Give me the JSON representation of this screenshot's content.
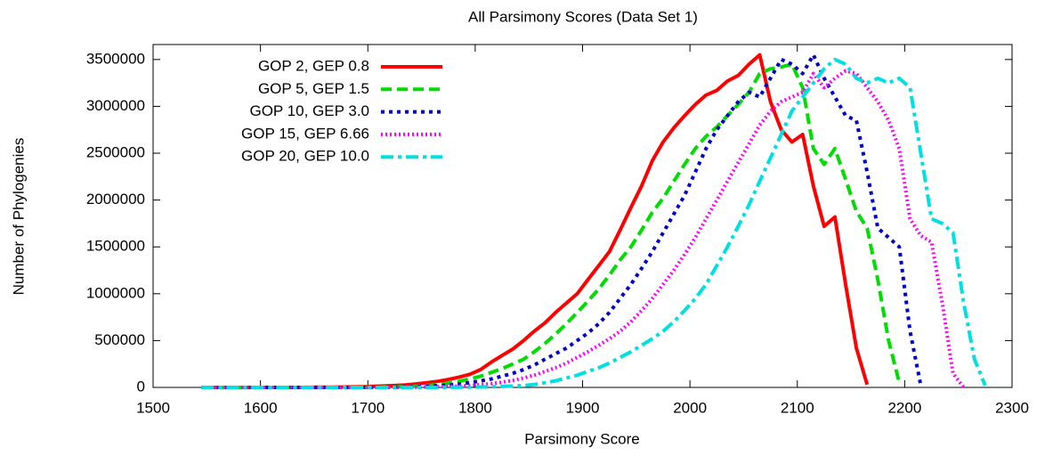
{
  "chart_data": {
    "type": "line",
    "title": "All Parsimony Scores (Data Set 1)",
    "x_label": "Parsimony Score",
    "y_label": "Number of Phylogenies",
    "xlim": [
      1500,
      2300
    ],
    "xticks": [
      1500,
      1600,
      1700,
      1800,
      1900,
      2000,
      2100,
      2200,
      2300
    ],
    "ylim": [
      0,
      3660000
    ],
    "yticks": [
      0,
      500000,
      1000000,
      1500000,
      2000000,
      2500000,
      3000000,
      3500000
    ],
    "legend": "upper left",
    "x": [
      1545,
      1555,
      1565,
      1575,
      1585,
      1595,
      1605,
      1615,
      1625,
      1635,
      1645,
      1655,
      1665,
      1675,
      1685,
      1695,
      1705,
      1715,
      1725,
      1735,
      1745,
      1755,
      1765,
      1775,
      1785,
      1795,
      1805,
      1815,
      1825,
      1835,
      1845,
      1855,
      1865,
      1875,
      1885,
      1895,
      1905,
      1915,
      1925,
      1935,
      1945,
      1955,
      1965,
      1975,
      1985,
      1995,
      2005,
      2015,
      2025,
      2035,
      2045,
      2055,
      2065,
      2075,
      2085,
      2095,
      2105,
      2115,
      2125,
      2135,
      2145,
      2155,
      2165,
      2175,
      2185,
      2195,
      2205,
      2215,
      2225,
      2235,
      2245,
      2255,
      2265,
      2275
    ],
    "series": [
      {
        "name": "GOP 2, GEP 0.8",
        "color": "#ff0000",
        "dash": "solid",
        "values": [
          0,
          0,
          0,
          0,
          0,
          0,
          0,
          0,
          0,
          0,
          1000,
          2000,
          3000,
          4000,
          6000,
          8000,
          11000,
          15000,
          20000,
          27000,
          37000,
          50000,
          65000,
          85000,
          110000,
          140000,
          190000,
          270000,
          340000,
          410000,
          500000,
          600000,
          690000,
          800000,
          900000,
          1000000,
          1150000,
          1300000,
          1450000,
          1680000,
          1920000,
          2150000,
          2420000,
          2620000,
          2770000,
          2900000,
          3020000,
          3120000,
          3170000,
          3270000,
          3330000,
          3450000,
          3550000,
          3050000,
          2750000,
          2620000,
          2700000,
          2150000,
          1720000,
          1820000,
          1100000,
          420000,
          30000,
          null,
          null,
          null,
          null,
          null,
          null,
          null,
          null,
          null,
          null,
          null
        ]
      },
      {
        "name": "GOP 5, GEP 1.5",
        "color": "#00dd00",
        "dash": "dash",
        "values": [
          0,
          0,
          0,
          0,
          0,
          0,
          0,
          0,
          0,
          0,
          0,
          0,
          0,
          0,
          1000,
          2000,
          3000,
          4000,
          6000,
          9000,
          13000,
          20000,
          30000,
          45000,
          65000,
          90000,
          120000,
          160000,
          200000,
          250000,
          300000,
          380000,
          470000,
          570000,
          680000,
          800000,
          920000,
          1050000,
          1200000,
          1360000,
          1500000,
          1680000,
          1870000,
          2020000,
          2200000,
          2380000,
          2550000,
          2680000,
          2780000,
          2900000,
          3020000,
          3150000,
          3350000,
          3400000,
          3420000,
          3450000,
          3200000,
          2550000,
          2380000,
          2550000,
          2220000,
          1880000,
          1700000,
          1150000,
          500000,
          50000,
          null,
          null,
          null,
          null,
          null,
          null,
          null,
          null
        ]
      },
      {
        "name": "GOP 10, GEP 3.0",
        "color": "#0000cc",
        "dash": "dot",
        "values": [
          0,
          0,
          0,
          0,
          0,
          0,
          0,
          0,
          0,
          0,
          0,
          0,
          0,
          0,
          0,
          0,
          1000,
          2000,
          3000,
          5000,
          8000,
          12000,
          18000,
          25000,
          35000,
          50000,
          70000,
          90000,
          120000,
          150000,
          190000,
          240000,
          300000,
          360000,
          420000,
          500000,
          580000,
          680000,
          800000,
          950000,
          1100000,
          1270000,
          1450000,
          1650000,
          1850000,
          2050000,
          2300000,
          2550000,
          2750000,
          2900000,
          3050000,
          3150000,
          3100000,
          3300000,
          3500000,
          3450000,
          3350000,
          3550000,
          3300000,
          3100000,
          2900000,
          2850000,
          2300000,
          1700000,
          1600000,
          1500000,
          600000,
          20000,
          null,
          null,
          null,
          null,
          null,
          null
        ]
      },
      {
        "name": "GOP 15, GEP 6.66",
        "color": "#ff00ff",
        "dash": "fine-dot",
        "values": [
          0,
          0,
          0,
          0,
          0,
          0,
          0,
          0,
          0,
          0,
          0,
          0,
          0,
          0,
          0,
          0,
          0,
          0,
          1000,
          2000,
          3000,
          5000,
          7000,
          10000,
          15000,
          20000,
          30000,
          40000,
          55000,
          75000,
          100000,
          130000,
          170000,
          210000,
          260000,
          320000,
          380000,
          450000,
          520000,
          600000,
          700000,
          820000,
          950000,
          1100000,
          1250000,
          1420000,
          1600000,
          1800000,
          2000000,
          2200000,
          2400000,
          2600000,
          2800000,
          2950000,
          3050000,
          3100000,
          3150000,
          3350000,
          3200000,
          3300000,
          3380000,
          3350000,
          3200000,
          3050000,
          2850000,
          2550000,
          1800000,
          1620000,
          1550000,
          900000,
          150000,
          0,
          null,
          null
        ]
      },
      {
        "name": "GOP 20, GEP 10.0",
        "color": "#00e0e0",
        "dash": "dash-dot",
        "values": [
          0,
          0,
          0,
          0,
          0,
          0,
          0,
          0,
          0,
          0,
          0,
          0,
          0,
          0,
          0,
          0,
          0,
          0,
          0,
          0,
          0,
          0,
          0,
          1000,
          2000,
          3000,
          5000,
          7000,
          10000,
          15000,
          20000,
          30000,
          50000,
          70000,
          100000,
          130000,
          170000,
          210000,
          260000,
          320000,
          380000,
          450000,
          520000,
          600000,
          700000,
          820000,
          950000,
          1100000,
          1300000,
          1500000,
          1720000,
          1950000,
          2200000,
          2450000,
          2700000,
          2950000,
          3100000,
          3250000,
          3400000,
          3500000,
          3450000,
          3300000,
          3250000,
          3300000,
          3250000,
          3300000,
          3200000,
          2500000,
          1800000,
          1750000,
          1650000,
          900000,
          300000,
          20000
        ]
      }
    ]
  }
}
